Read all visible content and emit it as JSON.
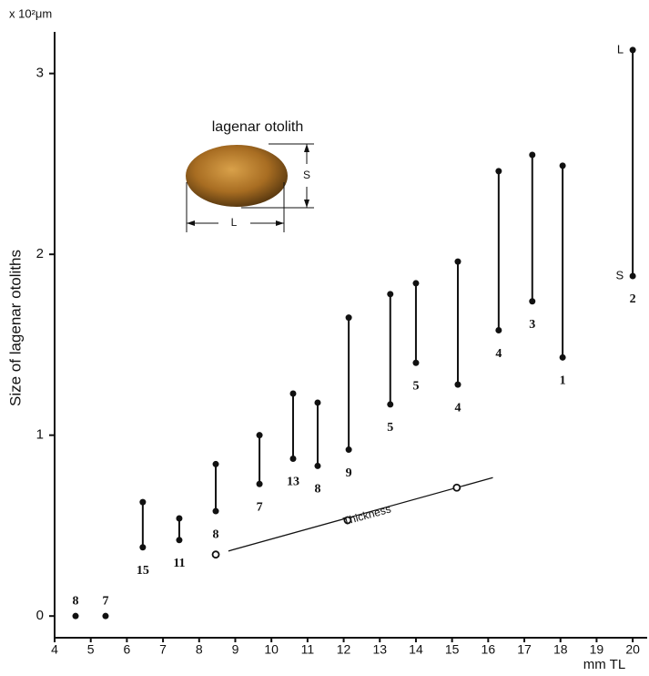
{
  "chart_data": {
    "type": "scatter",
    "y_unit": "x 10²μm",
    "x_unit": "mm TL",
    "y_label": "Size of lagenar otoliths",
    "inset_title": "lagenar otolith",
    "inset_labels": [
      "L",
      "S"
    ],
    "x": [
      4.58,
      5.41,
      6.44,
      7.45,
      8.46,
      9.67,
      10.6,
      11.28,
      12.14,
      13.29,
      14.0,
      15.16,
      16.29,
      17.22,
      18.06,
      20.0
    ],
    "series": [
      {
        "name": "L",
        "color": "#111111",
        "values": [
          null,
          null,
          0.63,
          0.54,
          0.84,
          1.0,
          1.23,
          1.18,
          1.65,
          1.78,
          1.84,
          1.96,
          2.46,
          2.55,
          2.49,
          3.13
        ]
      },
      {
        "name": "S",
        "color": "#111111",
        "values": [
          0,
          0,
          0.38,
          0.42,
          0.58,
          0.73,
          0.87,
          0.83,
          0.92,
          1.17,
          1.4,
          1.28,
          1.58,
          1.74,
          1.43,
          1.88
        ]
      }
    ],
    "n_labels": [
      "8",
      "7",
      "15",
      "11",
      "8",
      "7",
      "13",
      "8",
      "9",
      "5",
      "5",
      "4",
      "4",
      "3",
      "1",
      "2"
    ],
    "thickness": {
      "name": "Thickness",
      "color": "#111111",
      "x": [
        8.46,
        12.11,
        15.13
      ],
      "values": [
        0.34,
        0.53,
        0.71
      ]
    },
    "xlim": [
      4,
      20.4
    ],
    "ylim": [
      -0.12,
      3.23
    ],
    "xticks": [
      4,
      5,
      6,
      7,
      8,
      9,
      10,
      11,
      12,
      13,
      14,
      15,
      16,
      17,
      18,
      19,
      20
    ],
    "yticks": [
      0,
      1,
      2,
      3
    ]
  }
}
